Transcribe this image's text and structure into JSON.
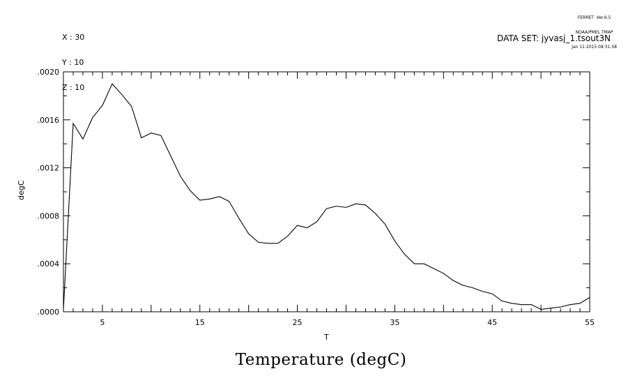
{
  "header": {
    "coords": [
      "X : 30",
      "Y : 10",
      "Z : 10"
    ],
    "ferret_lines": [
      "FERRET  Ver.6.5",
      "NOAA/PMEL TMAP",
      "Jan 11 2015 08:31:58"
    ],
    "dataset": "DATA SET: jyvasj_1.tsout3N"
  },
  "chart_data": {
    "type": "line",
    "title": "Temperature (degC)",
    "xlabel": "T",
    "ylabel": "degC",
    "xlim": [
      1,
      55
    ],
    "ylim": [
      0.0,
      0.002
    ],
    "xticks": [
      5,
      15,
      25,
      35,
      45,
      55
    ],
    "yticks": [
      0.0,
      0.0004,
      0.0008,
      0.0012,
      0.0016,
      0.002
    ],
    "ytick_labels": [
      ".0000",
      ".0004",
      ".0008",
      ".0012",
      ".0016",
      ".0020"
    ],
    "grid": false,
    "series": [
      {
        "x": [
          1,
          2,
          3,
          4,
          5,
          6,
          7,
          8,
          9,
          10,
          11,
          12,
          13,
          14,
          15,
          16,
          17,
          18,
          19,
          20,
          21,
          22,
          23,
          24,
          25,
          26,
          27,
          28,
          29,
          30,
          31,
          32,
          33,
          34,
          35,
          36,
          37,
          38,
          39,
          40,
          41,
          42,
          43,
          44,
          45,
          46,
          47,
          48,
          49,
          50,
          51,
          52,
          53,
          54,
          55
        ],
        "values": [
          2e-05,
          0.00157,
          0.00144,
          0.00162,
          0.00172,
          0.0019,
          0.00181,
          0.00171,
          0.00145,
          0.00149,
          0.00147,
          0.0013,
          0.00113,
          0.00101,
          0.00093,
          0.00094,
          0.00096,
          0.00092,
          0.00078,
          0.00065,
          0.00058,
          0.00057,
          0.00057,
          0.00063,
          0.00072,
          0.0007,
          0.00075,
          0.00086,
          0.00088,
          0.00087,
          0.0009,
          0.00089,
          0.00082,
          0.00073,
          0.00059,
          0.00048,
          0.0004,
          0.0004,
          0.00036,
          0.00032,
          0.00026,
          0.00022,
          0.0002,
          0.00017,
          0.00015,
          9e-05,
          7e-05,
          6e-05,
          6e-05,
          2e-05,
          3e-05,
          4e-05,
          6e-05,
          7e-05,
          0.00012
        ]
      }
    ]
  }
}
